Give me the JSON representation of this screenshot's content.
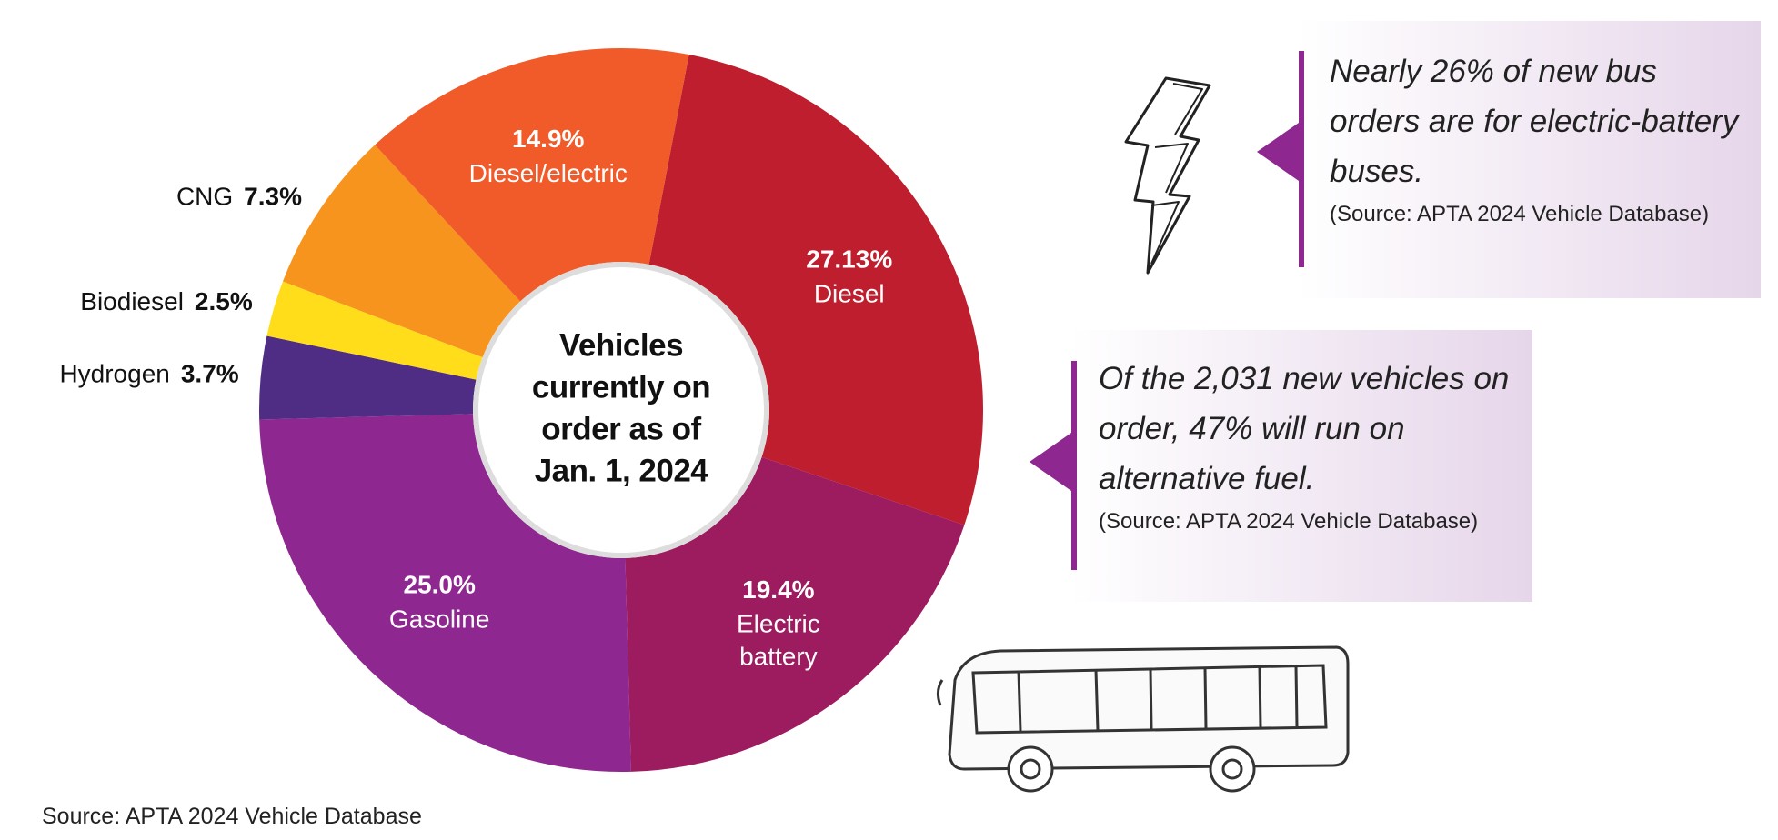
{
  "chart_data": {
    "type": "donut",
    "categories": [
      "Diesel",
      "Electric battery",
      "Gasoline",
      "Hydrogen",
      "Biodiesel",
      "CNG",
      "Diesel/electric"
    ],
    "values": [
      27.13,
      19.4,
      25.0,
      3.7,
      2.5,
      7.3,
      14.9
    ],
    "value_labels": [
      "27.13%",
      "19.4%",
      "25.0%",
      "3.7%",
      "2.5%",
      "7.3%",
      "14.9%"
    ],
    "colors": [
      "#be1e2d",
      "#9c1c5f",
      "#8e278f",
      "#4f2d84",
      "#ffdd1a",
      "#f7941d",
      "#f15a29"
    ],
    "center_text": [
      "Vehicles",
      "currently on",
      "order as of",
      "Jan. 1, 2024"
    ],
    "source": "Source: APTA 2024 Vehicle Database"
  },
  "callouts": [
    {
      "text": "Nearly 26% of new bus orders are for electric-battery buses.",
      "source": "(Source: APTA 2024 Vehicle Database)"
    },
    {
      "text": "Of the 2,031 new vehicles on order, 47% will run on alternative fuel.",
      "source": "(Source: APTA 2024 Vehicle Database)"
    }
  ]
}
